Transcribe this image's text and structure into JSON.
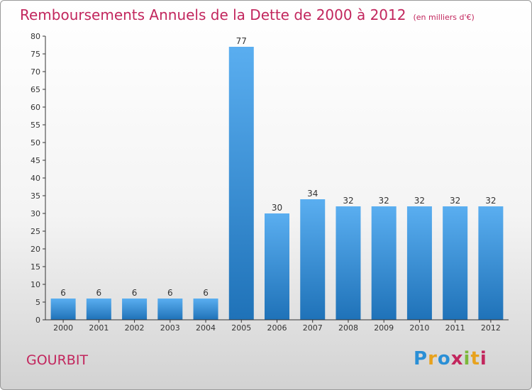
{
  "title": "Remboursements Annuels de la Dette de 2000 à 2012",
  "unit_note": "(en milliers d'€)",
  "commune": "GOURBIT",
  "brand": {
    "letters": [
      "P",
      "r",
      "o",
      "x",
      "i",
      "t",
      "i"
    ],
    "colors": [
      "#2a8fd6",
      "#e8a21d",
      "#2a8fd6",
      "#c2265d",
      "#7cb83a",
      "#e8a21d",
      "#c2265d"
    ]
  },
  "colors": {
    "bar_top": "#5aaef0",
    "bar_bottom": "#1f72b8",
    "title": "#c2265d",
    "axis": "#333333"
  },
  "chart_data": {
    "type": "bar",
    "categories": [
      "2000",
      "2001",
      "2002",
      "2003",
      "2004",
      "2005",
      "2006",
      "2007",
      "2008",
      "2009",
      "2010",
      "2011",
      "2012"
    ],
    "values": [
      6,
      6,
      6,
      6,
      6,
      77,
      30,
      34,
      32,
      32,
      32,
      32,
      32
    ],
    "ylim": [
      0,
      80
    ],
    "yticks": [
      0,
      5,
      10,
      15,
      20,
      25,
      30,
      35,
      40,
      45,
      50,
      55,
      60,
      65,
      70,
      75,
      80
    ],
    "grid": false,
    "data_labels": true
  }
}
